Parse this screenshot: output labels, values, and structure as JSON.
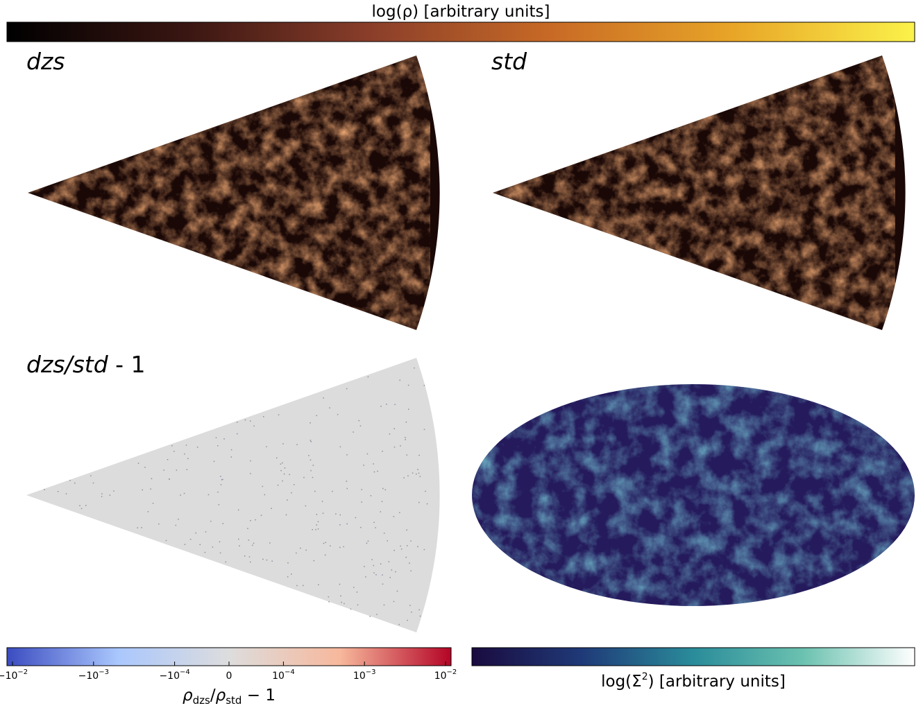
{
  "chart_data": [
    {
      "type": "heatmap",
      "panel_label": "dzs",
      "colorbar": {
        "label": "log(ρ) [arbitrary units]",
        "colormap": "afmhot",
        "colors": [
          "#000000",
          "#3a1612",
          "#8a3e2a",
          "#c86a26",
          "#e8a527",
          "#fbf24a"
        ]
      },
      "cell_color": "#6b2a18"
    },
    {
      "type": "heatmap",
      "panel_label": "std",
      "colorbar": {
        "label": "log(ρ) [arbitrary units]"
      },
      "cell_color": "#6b2a18"
    },
    {
      "type": "heatmap",
      "panel_label_main": "dzs/std",
      "panel_label_tail": " - 1",
      "colorbar": {
        "label_parts": {
          "rho": "ρ",
          "sub_num": "dzs",
          "sub_den": "std",
          "minus_one": " − 1"
        },
        "scale": "symlog",
        "colors": [
          "#3b4cc0",
          "#aac7fd",
          "#dddddd",
          "#f7b89c",
          "#b40426"
        ],
        "ticks": [
          {
            "value": -0.01,
            "base": "−10",
            "exp": "−2"
          },
          {
            "value": -0.001,
            "base": "−10",
            "exp": "−3"
          },
          {
            "value": -0.0001,
            "base": "−10",
            "exp": "−4"
          },
          {
            "value": 0,
            "base": "0",
            "exp": ""
          },
          {
            "value": 0.0001,
            "base": "10",
            "exp": "−4"
          },
          {
            "value": 0.001,
            "base": "10",
            "exp": "−3"
          },
          {
            "value": 0.01,
            "base": "10",
            "exp": "−2"
          }
        ]
      },
      "background_color": "#dcdcdc"
    },
    {
      "type": "heatmap",
      "projection": "mollweide",
      "colorbar": {
        "label_pre": "log(Σ",
        "label_sup": "2",
        "label_post": ") [arbitrary units]",
        "colormap": "ocean-teal",
        "colors": [
          "#1a0b3f",
          "#1f3a78",
          "#2a8c9a",
          "#6cc2b0",
          "#ffffff"
        ]
      },
      "background_color": "#241a5c"
    }
  ]
}
